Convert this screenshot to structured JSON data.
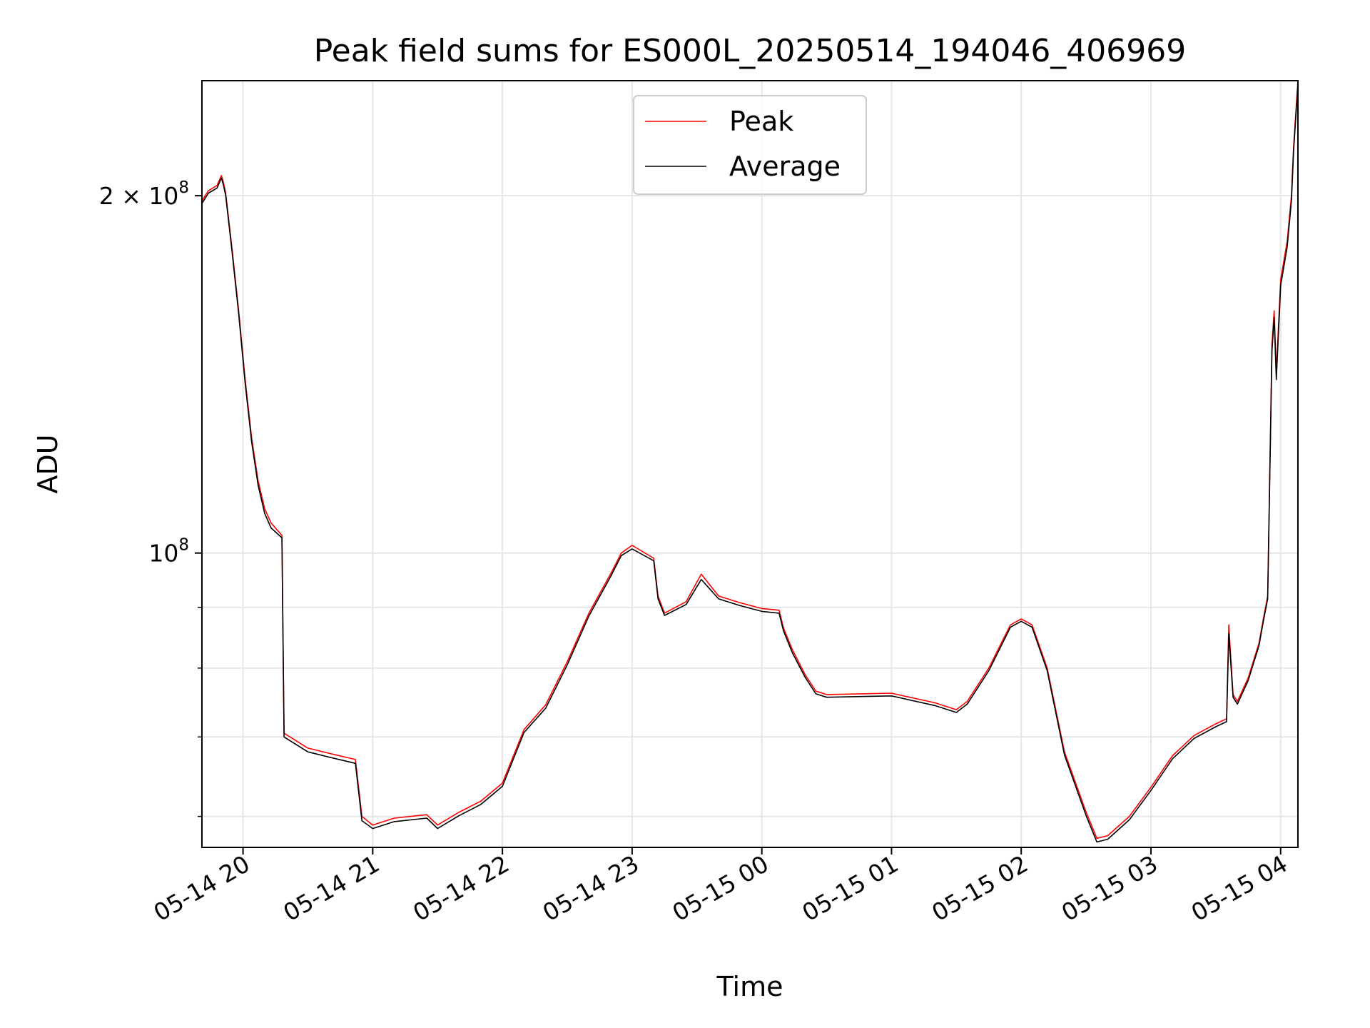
{
  "chart_data": {
    "type": "line",
    "title": "Peak field sums for ES000L_20250514_194046_406969",
    "xlabel": "Time",
    "ylabel": "ADU",
    "y_scale": "log",
    "xlim": [
      "2025-05-14T19:41",
      "2025-05-15T04:08"
    ],
    "ylim": [
      56500000,
      250000000
    ],
    "grid": true,
    "legend_position": "upper center",
    "x_ticks": [
      {
        "value": "2025-05-14T20:00",
        "label": "05-14 20"
      },
      {
        "value": "2025-05-14T21:00",
        "label": "05-14 21"
      },
      {
        "value": "2025-05-14T22:00",
        "label": "05-14 22"
      },
      {
        "value": "2025-05-14T23:00",
        "label": "05-14 23"
      },
      {
        "value": "2025-05-15T00:00",
        "label": "05-15 00"
      },
      {
        "value": "2025-05-15T01:00",
        "label": "05-15 01"
      },
      {
        "value": "2025-05-15T02:00",
        "label": "05-15 02"
      },
      {
        "value": "2025-05-15T03:00",
        "label": "05-15 03"
      },
      {
        "value": "2025-05-15T04:00",
        "label": "05-15 04"
      }
    ],
    "y_major_ticks": [
      {
        "value": 100000000,
        "base": "10",
        "exp": "8",
        "coef": ""
      },
      {
        "value": 200000000,
        "base": "10",
        "exp": "8",
        "coef": "2"
      }
    ],
    "y_minor_ticks": [
      60000000,
      70000000,
      80000000,
      90000000
    ],
    "series": [
      {
        "name": "Peak",
        "color": "#ff0000",
        "points": [
          [
            "2025-05-14T19:41",
            198000000
          ],
          [
            "2025-05-14T19:44",
            202000000
          ],
          [
            "2025-05-14T19:48",
            204000000
          ],
          [
            "2025-05-14T19:50",
            208000000
          ],
          [
            "2025-05-14T19:51",
            205000000
          ],
          [
            "2025-05-14T19:52",
            201000000
          ],
          [
            "2025-05-14T19:55",
            180000000
          ],
          [
            "2025-05-14T19:58",
            160000000
          ],
          [
            "2025-05-14T20:01",
            140000000
          ],
          [
            "2025-05-14T20:04",
            125000000
          ],
          [
            "2025-05-14T20:07",
            115000000
          ],
          [
            "2025-05-14T20:10",
            109000000
          ],
          [
            "2025-05-14T20:13",
            106000000
          ],
          [
            "2025-05-14T20:18",
            103500000
          ],
          [
            "2025-05-14T20:19",
            70500000
          ],
          [
            "2025-05-14T20:30",
            68500000
          ],
          [
            "2025-05-14T20:40",
            67800000
          ],
          [
            "2025-05-14T20:52",
            67000000
          ],
          [
            "2025-05-14T20:55",
            60000000
          ],
          [
            "2025-05-14T21:00",
            59000000
          ],
          [
            "2025-05-14T21:10",
            59800000
          ],
          [
            "2025-05-14T21:25",
            60200000
          ],
          [
            "2025-05-14T21:30",
            59000000
          ],
          [
            "2025-05-14T21:40",
            60500000
          ],
          [
            "2025-05-14T21:50",
            61800000
          ],
          [
            "2025-05-14T22:00",
            64000000
          ],
          [
            "2025-05-14T22:10",
            71000000
          ],
          [
            "2025-05-14T22:20",
            74500000
          ],
          [
            "2025-05-14T22:30",
            81000000
          ],
          [
            "2025-05-14T22:40",
            89000000
          ],
          [
            "2025-05-14T22:50",
            96000000
          ],
          [
            "2025-05-14T22:55",
            100000000
          ],
          [
            "2025-05-14T23:00",
            101500000
          ],
          [
            "2025-05-14T23:10",
            99000000
          ],
          [
            "2025-05-14T23:12",
            92000000
          ],
          [
            "2025-05-14T23:15",
            89000000
          ],
          [
            "2025-05-14T23:25",
            91000000
          ],
          [
            "2025-05-14T23:32",
            96000000
          ],
          [
            "2025-05-14T23:40",
            92000000
          ],
          [
            "2025-05-14T23:50",
            90800000
          ],
          [
            "2025-05-15T00:00",
            89800000
          ],
          [
            "2025-05-15T00:08",
            89500000
          ],
          [
            "2025-05-15T00:10",
            86500000
          ],
          [
            "2025-05-15T00:14",
            83000000
          ],
          [
            "2025-05-15T00:20",
            79000000
          ],
          [
            "2025-05-15T00:25",
            76500000
          ],
          [
            "2025-05-15T00:30",
            76000000
          ],
          [
            "2025-05-15T01:00",
            76200000
          ],
          [
            "2025-05-15T01:20",
            74800000
          ],
          [
            "2025-05-15T01:30",
            73800000
          ],
          [
            "2025-05-15T01:35",
            75000000
          ],
          [
            "2025-05-15T01:45",
            80000000
          ],
          [
            "2025-05-15T01:55",
            87000000
          ],
          [
            "2025-05-15T02:00",
            88000000
          ],
          [
            "2025-05-15T02:05",
            87000000
          ],
          [
            "2025-05-15T02:12",
            80000000
          ],
          [
            "2025-05-15T02:20",
            68000000
          ],
          [
            "2025-05-15T02:30",
            60500000
          ],
          [
            "2025-05-15T02:35",
            57500000
          ],
          [
            "2025-05-15T02:40",
            57800000
          ],
          [
            "2025-05-15T02:50",
            60000000
          ],
          [
            "2025-05-15T03:00",
            63500000
          ],
          [
            "2025-05-15T03:10",
            67500000
          ],
          [
            "2025-05-15T03:20",
            70200000
          ],
          [
            "2025-05-15T03:30",
            71800000
          ],
          [
            "2025-05-15T03:35",
            72500000
          ],
          [
            "2025-05-15T03:36",
            87000000
          ],
          [
            "2025-05-15T03:38",
            76000000
          ],
          [
            "2025-05-15T03:40",
            75000000
          ],
          [
            "2025-05-15T03:45",
            78500000
          ],
          [
            "2025-05-15T03:50",
            84000000
          ],
          [
            "2025-05-15T03:52",
            88000000
          ],
          [
            "2025-05-15T03:54",
            92000000
          ],
          [
            "2025-05-15T03:56",
            150000000
          ],
          [
            "2025-05-15T03:57",
            160000000
          ],
          [
            "2025-05-15T03:58",
            142000000
          ],
          [
            "2025-05-15T04:00",
            170000000
          ],
          [
            "2025-05-15T04:03",
            183000000
          ],
          [
            "2025-05-15T04:05",
            200000000
          ],
          [
            "2025-05-15T04:06",
            220000000
          ],
          [
            "2025-05-15T04:08",
            250000000
          ]
        ]
      },
      {
        "name": "Average",
        "color": "#000000",
        "points": [
          [
            "2025-05-14T19:41",
            197000000
          ],
          [
            "2025-05-14T19:44",
            201000000
          ],
          [
            "2025-05-14T19:48",
            203000000
          ],
          [
            "2025-05-14T19:50",
            207000000
          ],
          [
            "2025-05-14T19:51",
            204000000
          ],
          [
            "2025-05-14T19:52",
            200000000
          ],
          [
            "2025-05-14T19:55",
            179000000
          ],
          [
            "2025-05-14T19:58",
            159000000
          ],
          [
            "2025-05-14T20:01",
            139000000
          ],
          [
            "2025-05-14T20:04",
            124000000
          ],
          [
            "2025-05-14T20:07",
            114000000
          ],
          [
            "2025-05-14T20:10",
            108000000
          ],
          [
            "2025-05-14T20:13",
            105000000
          ],
          [
            "2025-05-14T20:18",
            103000000
          ],
          [
            "2025-05-14T20:19",
            70000000
          ],
          [
            "2025-05-14T20:30",
            68000000
          ],
          [
            "2025-05-14T20:40",
            67300000
          ],
          [
            "2025-05-14T20:52",
            66500000
          ],
          [
            "2025-05-14T20:55",
            59500000
          ],
          [
            "2025-05-14T21:00",
            58600000
          ],
          [
            "2025-05-14T21:10",
            59400000
          ],
          [
            "2025-05-14T21:25",
            59800000
          ],
          [
            "2025-05-14T21:30",
            58600000
          ],
          [
            "2025-05-14T21:40",
            60100000
          ],
          [
            "2025-05-14T21:50",
            61400000
          ],
          [
            "2025-05-14T22:00",
            63600000
          ],
          [
            "2025-05-14T22:10",
            70600000
          ],
          [
            "2025-05-14T22:20",
            74000000
          ],
          [
            "2025-05-14T22:30",
            80500000
          ],
          [
            "2025-05-14T22:40",
            88500000
          ],
          [
            "2025-05-14T22:50",
            95500000
          ],
          [
            "2025-05-14T22:55",
            99500000
          ],
          [
            "2025-05-14T23:00",
            100800000
          ],
          [
            "2025-05-14T23:10",
            98500000
          ],
          [
            "2025-05-14T23:12",
            91500000
          ],
          [
            "2025-05-14T23:15",
            88600000
          ],
          [
            "2025-05-14T23:25",
            90500000
          ],
          [
            "2025-05-14T23:32",
            95000000
          ],
          [
            "2025-05-14T23:40",
            91500000
          ],
          [
            "2025-05-14T23:50",
            90300000
          ],
          [
            "2025-05-15T00:00",
            89300000
          ],
          [
            "2025-05-15T00:08",
            89000000
          ],
          [
            "2025-05-15T00:10",
            86000000
          ],
          [
            "2025-05-15T00:14",
            82500000
          ],
          [
            "2025-05-15T00:20",
            78600000
          ],
          [
            "2025-05-15T00:25",
            76100000
          ],
          [
            "2025-05-15T00:30",
            75600000
          ],
          [
            "2025-05-15T01:00",
            75800000
          ],
          [
            "2025-05-15T01:20",
            74400000
          ],
          [
            "2025-05-15T01:30",
            73400000
          ],
          [
            "2025-05-15T01:35",
            74600000
          ],
          [
            "2025-05-15T01:45",
            79600000
          ],
          [
            "2025-05-15T01:55",
            86600000
          ],
          [
            "2025-05-15T02:00",
            87600000
          ],
          [
            "2025-05-15T02:05",
            86600000
          ],
          [
            "2025-05-15T02:12",
            79600000
          ],
          [
            "2025-05-15T02:20",
            67600000
          ],
          [
            "2025-05-15T02:30",
            60100000
          ],
          [
            "2025-05-15T02:35",
            57100000
          ],
          [
            "2025-05-15T02:40",
            57400000
          ],
          [
            "2025-05-15T02:50",
            59600000
          ],
          [
            "2025-05-15T03:00",
            63100000
          ],
          [
            "2025-05-15T03:10",
            67100000
          ],
          [
            "2025-05-15T03:20",
            69800000
          ],
          [
            "2025-05-15T03:30",
            71400000
          ],
          [
            "2025-05-15T03:35",
            72100000
          ],
          [
            "2025-05-15T03:36",
            85500000
          ],
          [
            "2025-05-15T03:38",
            75600000
          ],
          [
            "2025-05-15T03:40",
            74600000
          ],
          [
            "2025-05-15T03:45",
            78100000
          ],
          [
            "2025-05-15T03:50",
            83600000
          ],
          [
            "2025-05-15T03:52",
            87600000
          ],
          [
            "2025-05-15T03:54",
            91500000
          ],
          [
            "2025-05-15T03:56",
            148000000
          ],
          [
            "2025-05-15T03:57",
            158000000
          ],
          [
            "2025-05-15T03:58",
            140000000
          ],
          [
            "2025-05-15T04:00",
            168000000
          ],
          [
            "2025-05-15T04:03",
            181000000
          ],
          [
            "2025-05-15T04:05",
            198000000
          ],
          [
            "2025-05-15T04:06",
            218000000
          ],
          [
            "2025-05-15T04:08",
            248000000
          ]
        ]
      }
    ],
    "legend": [
      {
        "label": "Peak",
        "color": "#ff0000"
      },
      {
        "label": "Average",
        "color": "#000000"
      }
    ]
  }
}
